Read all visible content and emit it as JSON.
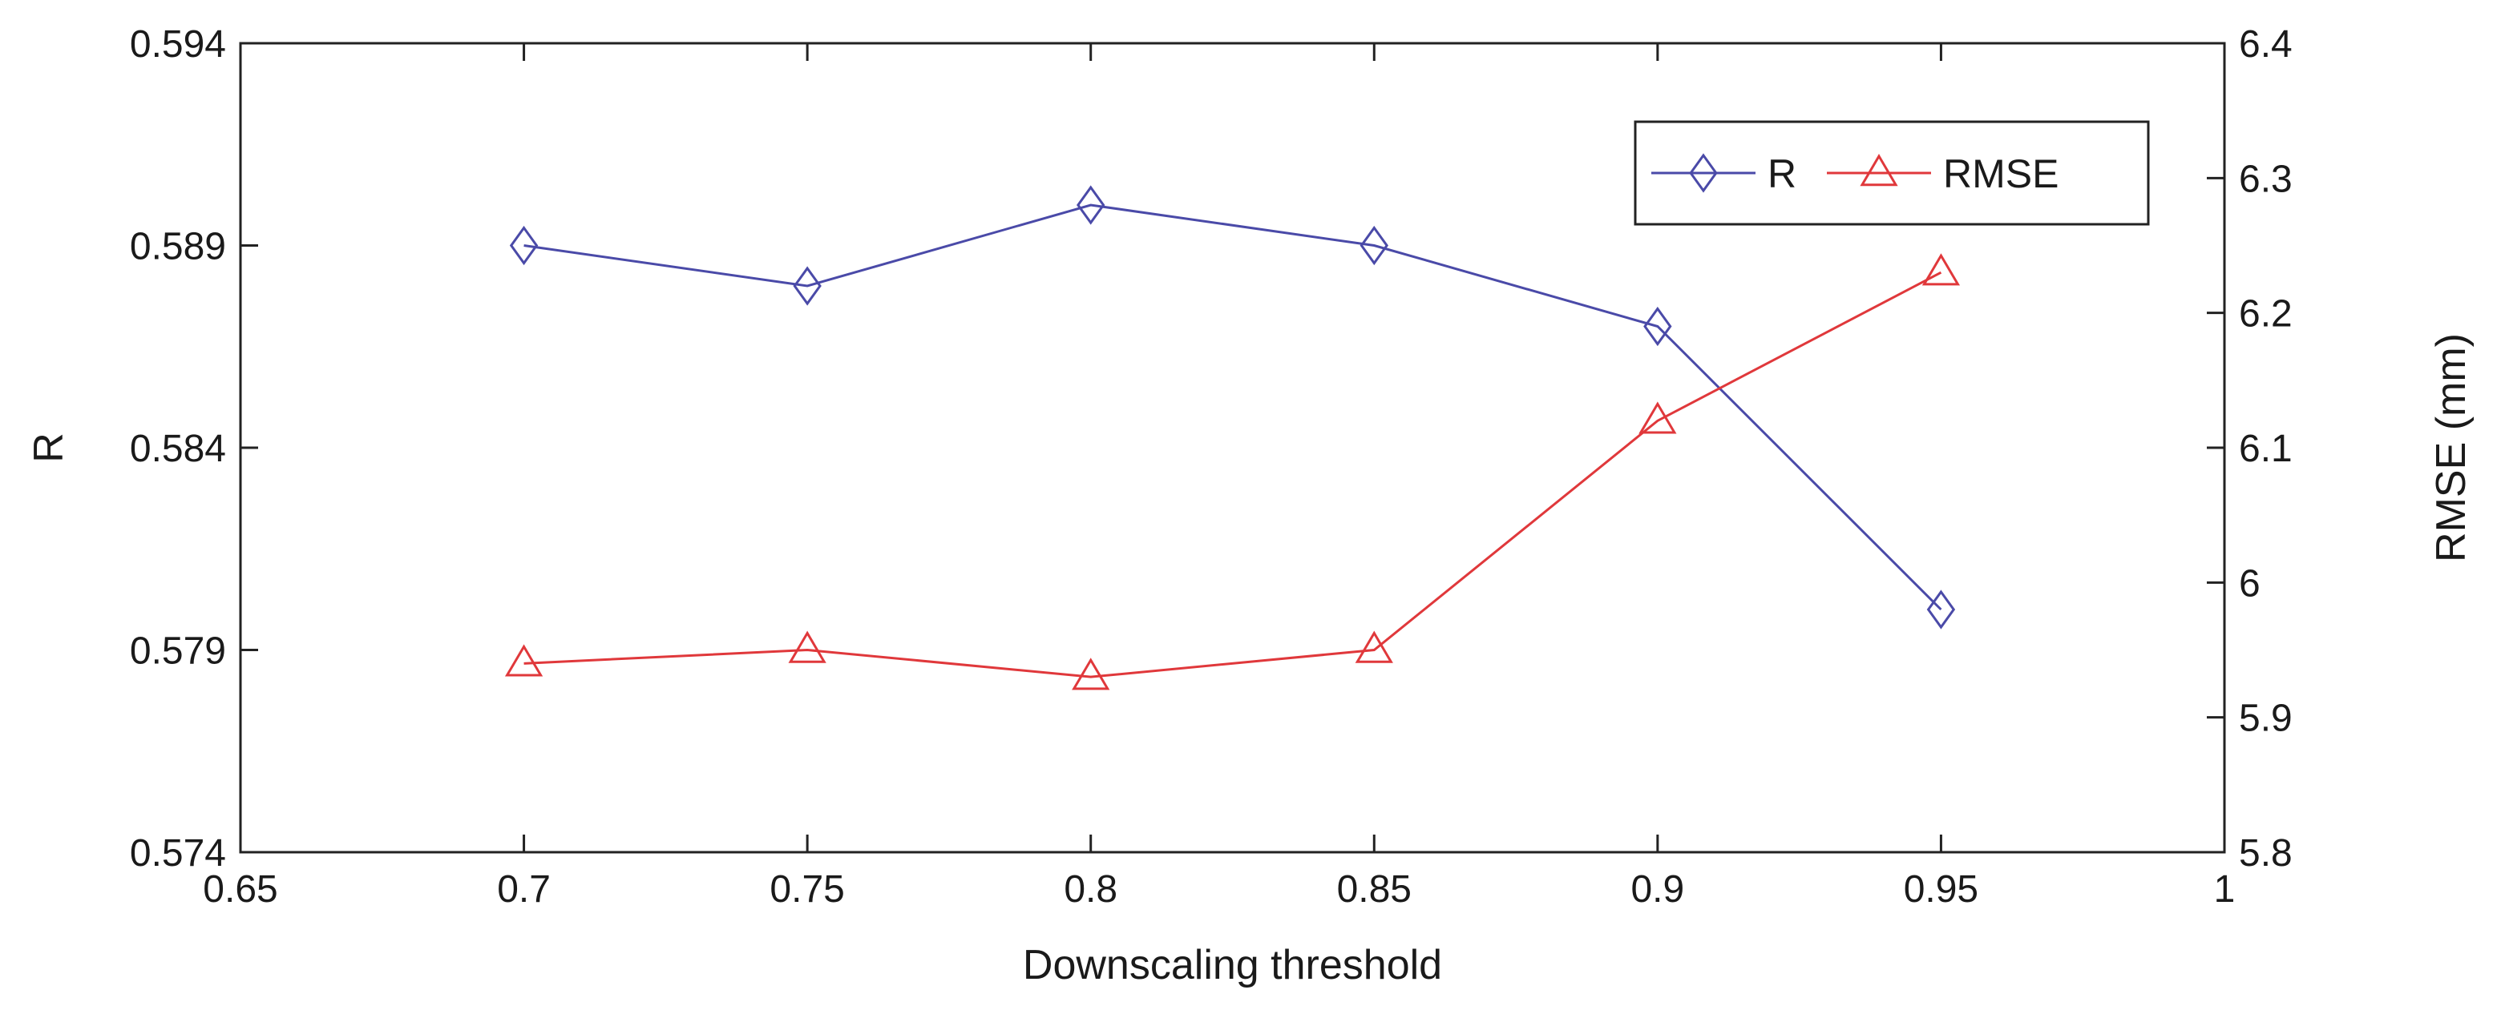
{
  "chart_data": {
    "type": "line",
    "x": [
      0.7,
      0.75,
      0.8,
      0.85,
      0.9,
      0.95
    ],
    "xlabel": "Downscaling threshold",
    "xlim": [
      0.65,
      1
    ],
    "xticks": [
      0.65,
      0.7,
      0.75,
      0.8,
      0.85,
      0.9,
      0.95,
      1
    ],
    "xtick_labels": [
      "0.65",
      "0.7",
      "0.75",
      "0.8",
      "0.85",
      "0.9",
      "0.95",
      "1"
    ],
    "ylabel_left": "R",
    "ylim_left": [
      0.574,
      0.594
    ],
    "yticks_left": [
      0.574,
      0.579,
      0.584,
      0.589,
      0.594
    ],
    "ytick_labels_left": [
      "0.574",
      "0.579",
      "0.584",
      "0.589",
      "0.594"
    ],
    "ylabel_right": "RMSE (mm)",
    "ylim_right": [
      5.8,
      6.4
    ],
    "yticks_right": [
      5.8,
      5.9,
      6,
      6.1,
      6.2,
      6.3,
      6.4
    ],
    "ytick_labels_right": [
      "5.8",
      "5.9",
      "6",
      "6.1",
      "6.2",
      "6.3",
      "6.4"
    ],
    "grid": false,
    "legend_position": "top-right",
    "series": [
      {
        "name": "R",
        "axis": "left",
        "color": "#4a4aa8",
        "marker": "diamond",
        "values": [
          0.589,
          0.588,
          0.59,
          0.589,
          0.587,
          0.58
        ]
      },
      {
        "name": "RMSE",
        "axis": "right",
        "color": "#e0383b",
        "marker": "triangle",
        "values": [
          5.94,
          5.95,
          5.93,
          5.95,
          6.12,
          6.23
        ]
      }
    ]
  }
}
